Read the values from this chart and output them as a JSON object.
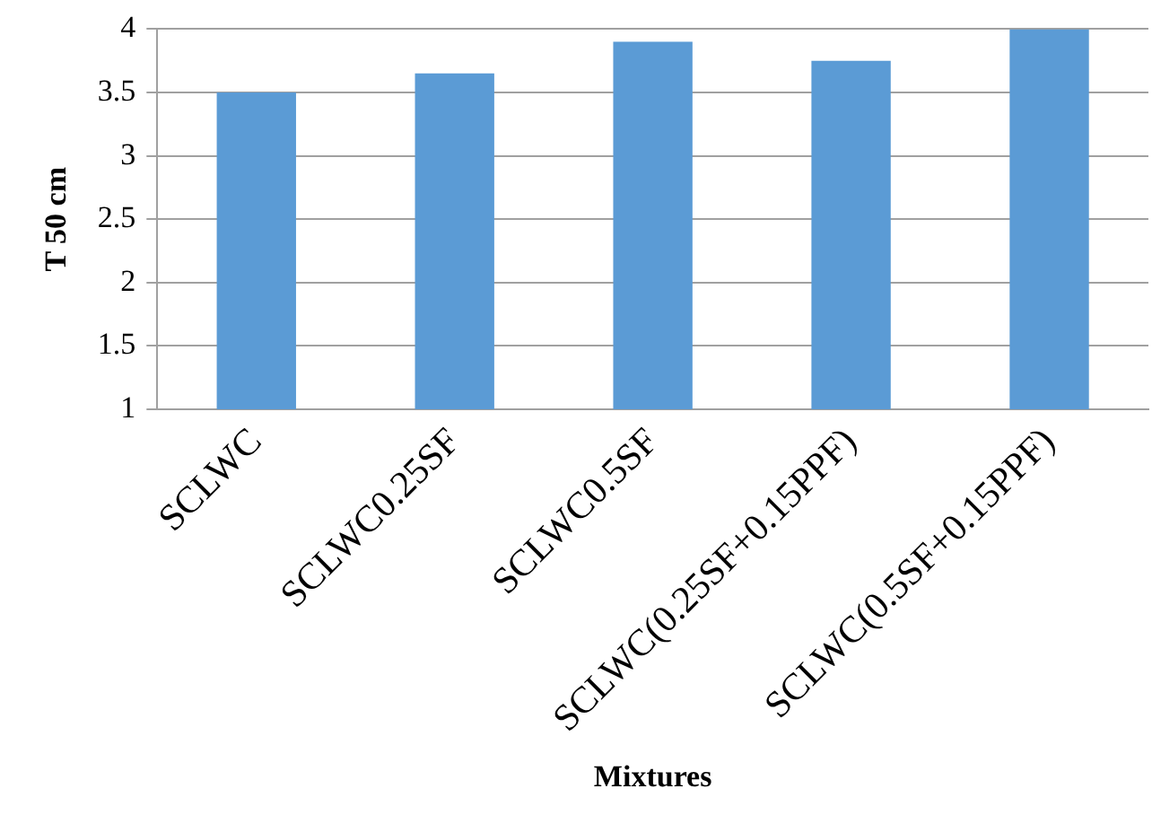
{
  "chart_data": {
    "type": "bar",
    "xlabel": "Mixtures",
    "ylabel": "T 50 cm",
    "categories": [
      "SCLWC",
      "SCLWC0.25SF",
      "SCLWC0.5SF",
      "SCLWC(0.25SF+0.15PPF)",
      "SCLWC(0.5SF+0.15PPF)"
    ],
    "values": [
      3.5,
      3.65,
      3.9,
      3.75,
      4
    ],
    "color": "#5b9bd5",
    "ylim": [
      1,
      4
    ],
    "yticks": [
      1,
      1.5,
      2,
      2.5,
      3,
      3.5,
      4
    ],
    "grid": "y",
    "legend": false
  }
}
